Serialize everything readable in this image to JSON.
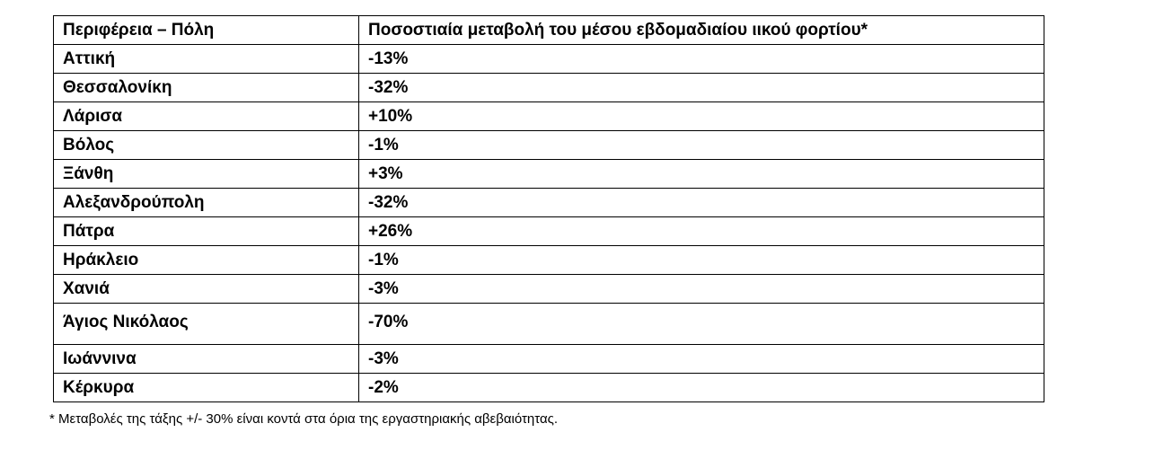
{
  "table": {
    "headers": {
      "region": "Περιφέρεια – Πόλη",
      "change": "Ποσοστιαία μεταβολή του μέσου εβδομαδιαίου ιικού φορτίου*"
    },
    "rows": [
      {
        "region": "Αττική",
        "change": "-13%"
      },
      {
        "region": "Θεσσαλονίκη",
        "change": "-32%"
      },
      {
        "region": "Λάρισα",
        "change": "+10%"
      },
      {
        "region": "Βόλος",
        "change": "-1%"
      },
      {
        "region": "Ξάνθη",
        "change": "+3%"
      },
      {
        "region": "Αλεξανδρούπολη",
        "change": "-32%"
      },
      {
        "region": "Πάτρα",
        "change": "+26%"
      },
      {
        "region": "Ηράκλειο",
        "change": "-1%"
      },
      {
        "region": "Χανιά",
        "change": "-3%"
      },
      {
        "region": "Άγιος Νικόλαος",
        "change": "-70%"
      },
      {
        "region": "Ιωάννινα",
        "change": "-3%"
      },
      {
        "region": "Κέρκυρα",
        "change": "-2%"
      }
    ]
  },
  "footnote": "* Μεταβολές της τάξης +/- 30% είναι κοντά στα όρια της εργαστηριακής αβεβαιότητας."
}
